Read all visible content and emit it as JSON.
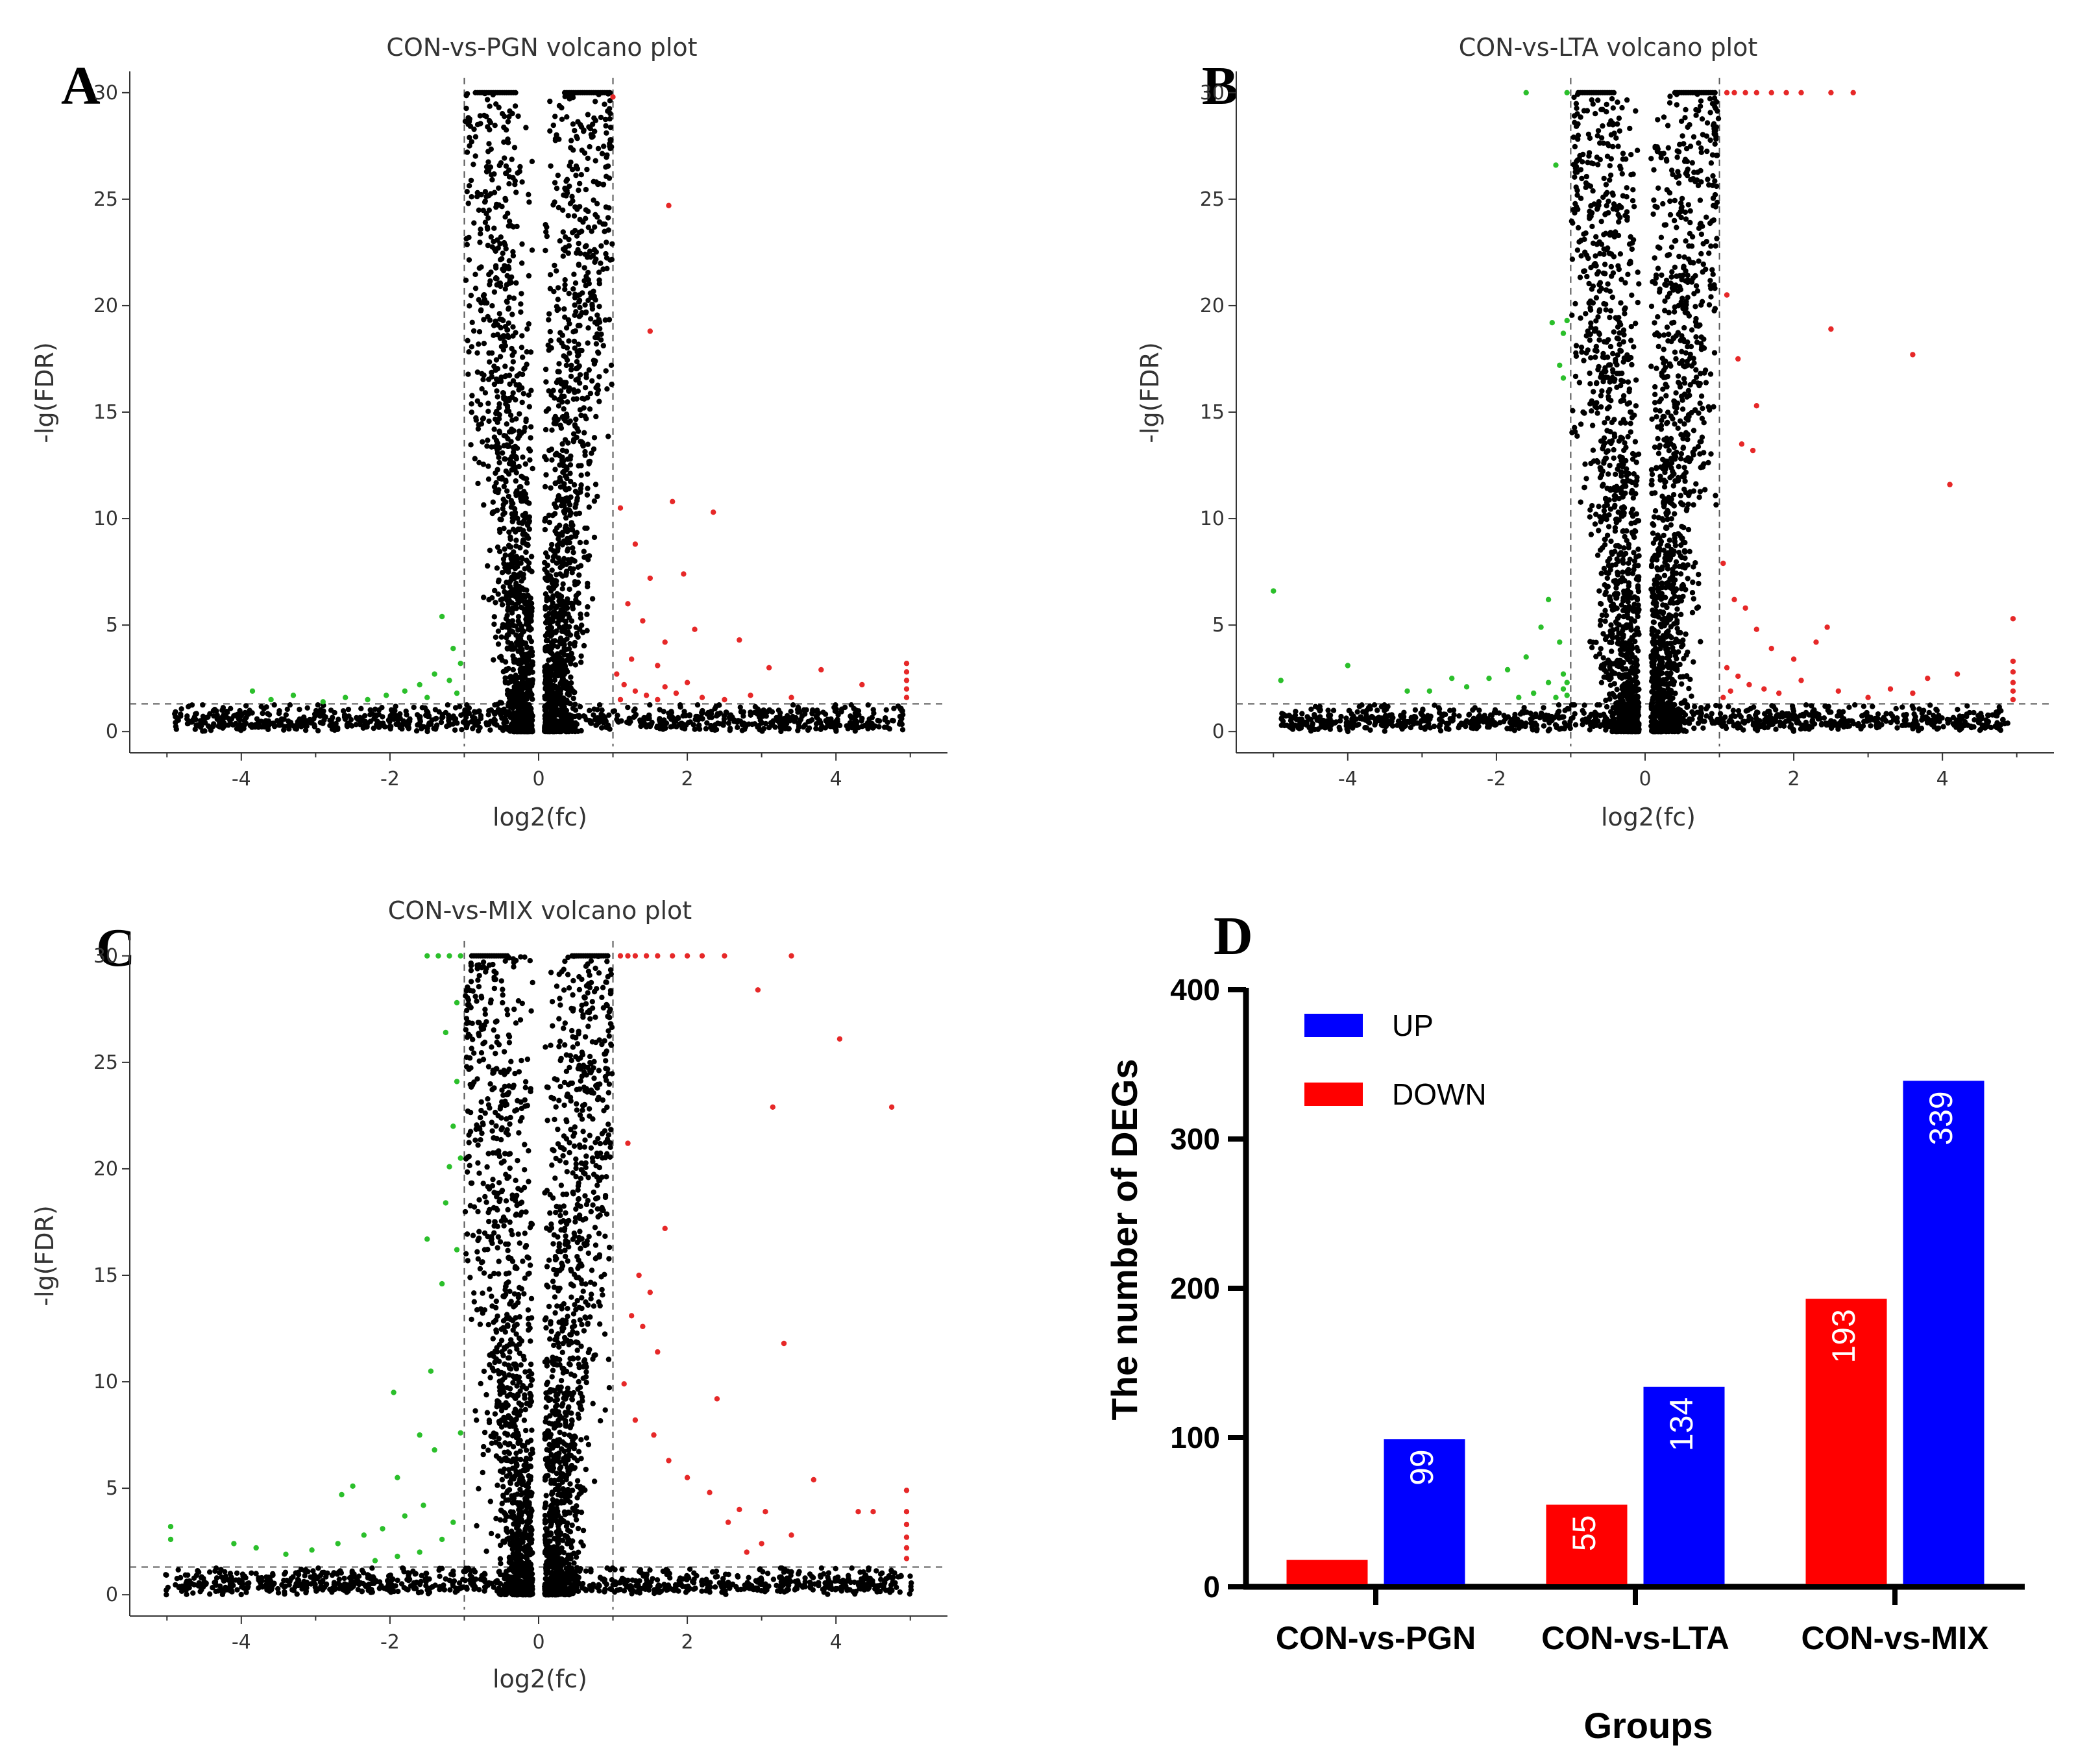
{
  "figure_panels": [
    "A",
    "B",
    "C",
    "D"
  ],
  "chart_data": [
    {
      "panel": "A",
      "type": "scatter",
      "title": "CON-vs-PGN volcano plot",
      "xlabel": "log2(fc)",
      "ylabel": "-lg(FDR)",
      "xlim": [
        -5.5,
        5.5
      ],
      "ylim": [
        -1,
        31
      ],
      "xticks": [
        -4,
        -2,
        0,
        2,
        4
      ],
      "yticks": [
        0,
        5,
        10,
        15,
        20,
        25,
        30
      ],
      "fc_threshold": 1,
      "fdr_threshold": 1.3,
      "colors": {
        "up": "#e62828",
        "down": "#2bbf2b",
        "ns": "#333333"
      },
      "series": [
        {
          "name": "up",
          "points": [
            [
              1.0,
              29.8
            ],
            [
              1.75,
              24.7
            ],
            [
              1.5,
              18.8
            ],
            [
              1.8,
              10.8
            ],
            [
              2.35,
              10.3
            ],
            [
              1.1,
              10.5
            ],
            [
              1.3,
              8.8
            ],
            [
              1.5,
              7.2
            ],
            [
              1.95,
              7.4
            ],
            [
              1.2,
              6.0
            ],
            [
              1.4,
              5.2
            ],
            [
              1.7,
              4.2
            ],
            [
              2.1,
              4.8
            ],
            [
              2.7,
              4.3
            ],
            [
              1.25,
              3.4
            ],
            [
              1.6,
              3.1
            ],
            [
              3.1,
              3.0
            ],
            [
              3.8,
              2.9
            ],
            [
              4.35,
              2.2
            ],
            [
              4.95,
              3.2
            ],
            [
              4.95,
              2.8
            ],
            [
              4.95,
              2.4
            ],
            [
              4.95,
              2.0
            ],
            [
              4.95,
              1.6
            ],
            [
              1.05,
              2.7
            ],
            [
              1.15,
              2.2
            ],
            [
              1.3,
              1.9
            ],
            [
              1.45,
              1.7
            ],
            [
              1.6,
              1.5
            ],
            [
              1.85,
              1.8
            ],
            [
              2.2,
              1.6
            ],
            [
              2.5,
              1.5
            ],
            [
              2.85,
              1.7
            ],
            [
              3.4,
              1.6
            ],
            [
              1.1,
              1.5
            ],
            [
              1.7,
              2.1
            ],
            [
              2.0,
              2.3
            ]
          ]
        },
        {
          "name": "down",
          "points": [
            [
              -1.3,
              5.4
            ],
            [
              -1.15,
              3.9
            ],
            [
              -1.05,
              3.2
            ],
            [
              -1.4,
              2.7
            ],
            [
              -1.6,
              2.2
            ],
            [
              -1.8,
              1.9
            ],
            [
              -2.05,
              1.7
            ],
            [
              -2.3,
              1.5
            ],
            [
              -2.6,
              1.6
            ],
            [
              -2.9,
              1.4
            ],
            [
              -3.3,
              1.7
            ],
            [
              -3.6,
              1.5
            ],
            [
              -3.85,
              1.9
            ],
            [
              -1.2,
              2.4
            ],
            [
              -1.5,
              1.6
            ],
            [
              -1.1,
              1.8
            ]
          ]
        }
      ],
      "ns_profile": {
        "core_width": 0.32,
        "core_center": 0.55,
        "cap": 30,
        "saturated_ranges": [
          [
            -0.85,
            -0.3
          ],
          [
            0.35,
            0.98
          ]
        ]
      }
    },
    {
      "panel": "B",
      "type": "scatter",
      "title": "CON-vs-LTA volcano plot",
      "xlabel": "log2(fc)",
      "ylabel": "-lg(FDR)",
      "xlim": [
        -5.5,
        5.5
      ],
      "ylim": [
        -1,
        31
      ],
      "xticks": [
        -4,
        -2,
        0,
        2,
        4
      ],
      "yticks": [
        0,
        5,
        10,
        15,
        20,
        25,
        30
      ],
      "fc_threshold": 1,
      "fdr_threshold": 1.3,
      "colors": {
        "up": "#e62828",
        "down": "#2bbf2b",
        "ns": "#333333"
      },
      "series": [
        {
          "name": "up",
          "points": [
            [
              1.1,
              30
            ],
            [
              1.2,
              30
            ],
            [
              1.35,
              30
            ],
            [
              1.5,
              30
            ],
            [
              1.7,
              30
            ],
            [
              1.9,
              30
            ],
            [
              2.1,
              30
            ],
            [
              2.5,
              30
            ],
            [
              2.8,
              30
            ],
            [
              1.1,
              20.5
            ],
            [
              2.5,
              18.9
            ],
            [
              1.25,
              17.5
            ],
            [
              1.5,
              15.3
            ],
            [
              3.6,
              17.7
            ],
            [
              1.3,
              13.5
            ],
            [
              1.45,
              13.2
            ],
            [
              4.1,
              11.6
            ],
            [
              1.05,
              7.9
            ],
            [
              1.2,
              6.2
            ],
            [
              1.35,
              5.8
            ],
            [
              1.5,
              4.8
            ],
            [
              1.7,
              3.9
            ],
            [
              2.0,
              3.4
            ],
            [
              2.3,
              4.2
            ],
            [
              2.45,
              4.9
            ],
            [
              1.1,
              3.0
            ],
            [
              1.25,
              2.6
            ],
            [
              1.4,
              2.2
            ],
            [
              1.6,
              2.0
            ],
            [
              1.8,
              1.8
            ],
            [
              2.1,
              2.4
            ],
            [
              2.6,
              1.9
            ],
            [
              3.0,
              1.6
            ],
            [
              3.3,
              2.0
            ],
            [
              3.6,
              1.8
            ],
            [
              3.8,
              2.5
            ],
            [
              4.2,
              2.7
            ],
            [
              4.95,
              5.3
            ],
            [
              4.95,
              3.3
            ],
            [
              4.95,
              2.8
            ],
            [
              4.95,
              2.3
            ],
            [
              4.95,
              1.9
            ],
            [
              4.95,
              1.5
            ],
            [
              1.05,
              1.6
            ],
            [
              1.15,
              1.9
            ]
          ]
        },
        {
          "name": "down",
          "points": [
            [
              -1.6,
              30
            ],
            [
              -1.05,
              30
            ],
            [
              -1.2,
              26.6
            ],
            [
              -1.05,
              19.3
            ],
            [
              -1.25,
              19.2
            ],
            [
              -1.1,
              18.7
            ],
            [
              -1.15,
              17.2
            ],
            [
              -1.1,
              16.6
            ],
            [
              -5.0,
              6.6
            ],
            [
              -1.3,
              6.2
            ],
            [
              -1.4,
              4.9
            ],
            [
              -1.15,
              4.2
            ],
            [
              -1.6,
              3.5
            ],
            [
              -1.85,
              2.9
            ],
            [
              -2.1,
              2.5
            ],
            [
              -2.4,
              2.1
            ],
            [
              -2.6,
              2.5
            ],
            [
              -2.9,
              1.9
            ],
            [
              -3.2,
              1.9
            ],
            [
              -4.0,
              3.1
            ],
            [
              -4.9,
              2.4
            ],
            [
              -1.1,
              2.0
            ],
            [
              -1.2,
              1.6
            ],
            [
              -1.05,
              1.7
            ],
            [
              -1.3,
              2.3
            ],
            [
              -1.5,
              1.8
            ],
            [
              -1.7,
              1.6
            ],
            [
              -1.1,
              2.7
            ],
            [
              -1.05,
              2.3
            ]
          ]
        }
      ],
      "ns_profile": {
        "core_width": 0.36,
        "core_center": 0.55,
        "cap": 30,
        "saturated_ranges": [
          [
            -0.9,
            -0.4
          ],
          [
            0.4,
            0.95
          ]
        ]
      }
    },
    {
      "panel": "C",
      "type": "scatter",
      "title": "CON-vs-MIX volcano plot",
      "xlabel": "log2(fc)",
      "ylabel": "-lg(FDR)",
      "xlim": [
        -5.5,
        5.5
      ],
      "ylim": [
        -1,
        31
      ],
      "xticks": [
        -4,
        -2,
        0,
        2,
        4
      ],
      "yticks": [
        0,
        5,
        10,
        15,
        20,
        25,
        30
      ],
      "fc_threshold": 1,
      "fdr_threshold": 1.3,
      "colors": {
        "up": "#e62828",
        "down": "#2bbf2b",
        "ns": "#333333"
      },
      "series": [
        {
          "name": "up",
          "points": [
            [
              1.1,
              30
            ],
            [
              1.2,
              30
            ],
            [
              1.3,
              30
            ],
            [
              1.45,
              30
            ],
            [
              1.6,
              30
            ],
            [
              1.8,
              30
            ],
            [
              2.0,
              30
            ],
            [
              2.2,
              30
            ],
            [
              2.5,
              30
            ],
            [
              3.4,
              30
            ],
            [
              2.95,
              28.4
            ],
            [
              4.05,
              26.1
            ],
            [
              3.15,
              22.9
            ],
            [
              4.75,
              22.9
            ],
            [
              1.2,
              21.2
            ],
            [
              1.7,
              17.2
            ],
            [
              1.35,
              15.0
            ],
            [
              1.5,
              14.2
            ],
            [
              1.25,
              13.1
            ],
            [
              1.4,
              12.6
            ],
            [
              3.3,
              11.8
            ],
            [
              1.6,
              11.4
            ],
            [
              2.4,
              9.2
            ],
            [
              1.15,
              9.9
            ],
            [
              1.3,
              8.2
            ],
            [
              1.55,
              7.5
            ],
            [
              1.75,
              6.3
            ],
            [
              2.0,
              5.5
            ],
            [
              2.3,
              4.8
            ],
            [
              2.7,
              4.0
            ],
            [
              3.05,
              3.9
            ],
            [
              3.7,
              5.4
            ],
            [
              4.3,
              3.9
            ],
            [
              4.5,
              3.9
            ],
            [
              4.95,
              4.9
            ],
            [
              4.95,
              3.9
            ],
            [
              4.95,
              3.3
            ],
            [
              4.95,
              2.7
            ],
            [
              4.95,
              2.2
            ],
            [
              4.95,
              1.7
            ],
            [
              2.55,
              3.4
            ],
            [
              3.4,
              2.8
            ],
            [
              3.0,
              2.4
            ],
            [
              2.8,
              2.0
            ]
          ]
        },
        {
          "name": "down",
          "points": [
            [
              -1.5,
              30
            ],
            [
              -1.35,
              30
            ],
            [
              -1.2,
              30
            ],
            [
              -1.05,
              30
            ],
            [
              -1.1,
              27.8
            ],
            [
              -1.25,
              26.4
            ],
            [
              -1.1,
              24.1
            ],
            [
              -1.15,
              22.0
            ],
            [
              -1.05,
              20.5
            ],
            [
              -1.2,
              20.1
            ],
            [
              -1.25,
              18.4
            ],
            [
              -1.5,
              16.7
            ],
            [
              -1.1,
              16.2
            ],
            [
              -1.3,
              14.6
            ],
            [
              -1.45,
              10.5
            ],
            [
              -1.95,
              9.5
            ],
            [
              -1.05,
              7.6
            ],
            [
              -1.6,
              7.5
            ],
            [
              -1.4,
              6.8
            ],
            [
              -2.5,
              5.1
            ],
            [
              -2.65,
              4.7
            ],
            [
              -1.9,
              5.5
            ],
            [
              -1.55,
              4.2
            ],
            [
              -1.8,
              3.7
            ],
            [
              -2.1,
              3.1
            ],
            [
              -2.35,
              2.8
            ],
            [
              -2.7,
              2.4
            ],
            [
              -3.05,
              2.1
            ],
            [
              -3.4,
              1.9
            ],
            [
              -3.8,
              2.2
            ],
            [
              -4.1,
              2.4
            ],
            [
              -4.95,
              3.2
            ],
            [
              -4.95,
              2.6
            ],
            [
              -1.15,
              3.4
            ],
            [
              -1.3,
              2.6
            ],
            [
              -1.6,
              2.0
            ],
            [
              -1.9,
              1.8
            ],
            [
              -2.2,
              1.6
            ]
          ]
        }
      ],
      "ns_profile": {
        "core_width": 0.36,
        "core_center": 0.55,
        "cap": 30,
        "saturated_ranges": [
          [
            -0.9,
            -0.4
          ],
          [
            0.45,
            0.95
          ]
        ]
      }
    },
    {
      "panel": "D",
      "type": "bar",
      "categories": [
        "CON-vs-PGN",
        "CON-vs-LTA",
        "CON-vs-MIX"
      ],
      "series": [
        {
          "name": "DOWN",
          "color": "#ff0000",
          "values": [
            18,
            55,
            193
          ],
          "labels": [
            "",
            "55",
            "193"
          ]
        },
        {
          "name": "UP",
          "color": "#0000ff",
          "values": [
            99,
            134,
            339
          ],
          "labels": [
            "99",
            "134",
            "339"
          ]
        }
      ],
      "legend_order": [
        "UP",
        "DOWN"
      ],
      "legend": "top-left",
      "xlabel": "Groups",
      "ylabel": "The number of DEGs",
      "ylim": [
        0,
        400
      ],
      "yticks": [
        0,
        100,
        200,
        300,
        400
      ]
    }
  ]
}
